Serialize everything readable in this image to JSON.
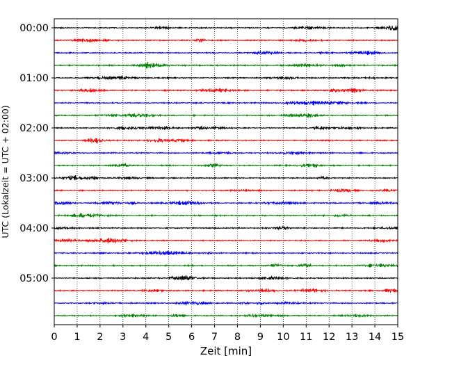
{
  "chart_data": {
    "type": "line",
    "subtype": "helicorder",
    "xlabel": "Zeit  [min]",
    "ylabel": "UTC (Lokalzeit = UTC + 02:00)",
    "xlim": [
      0,
      15
    ],
    "xticks": [
      "0",
      "1",
      "2",
      "3",
      "4",
      "5",
      "6",
      "7",
      "8",
      "9",
      "10",
      "11",
      "12",
      "13",
      "14",
      "15"
    ],
    "yticks": [
      "00:00",
      "01:00",
      "02:00",
      "03:00",
      "04:00",
      "05:00"
    ],
    "trace_interval_minutes": 15,
    "trace_count": 24,
    "trace_colors": [
      "#000000",
      "#ff0000",
      "#0000ff",
      "#008000"
    ],
    "grid": "vertical dotted at each minute",
    "legend": "none"
  }
}
